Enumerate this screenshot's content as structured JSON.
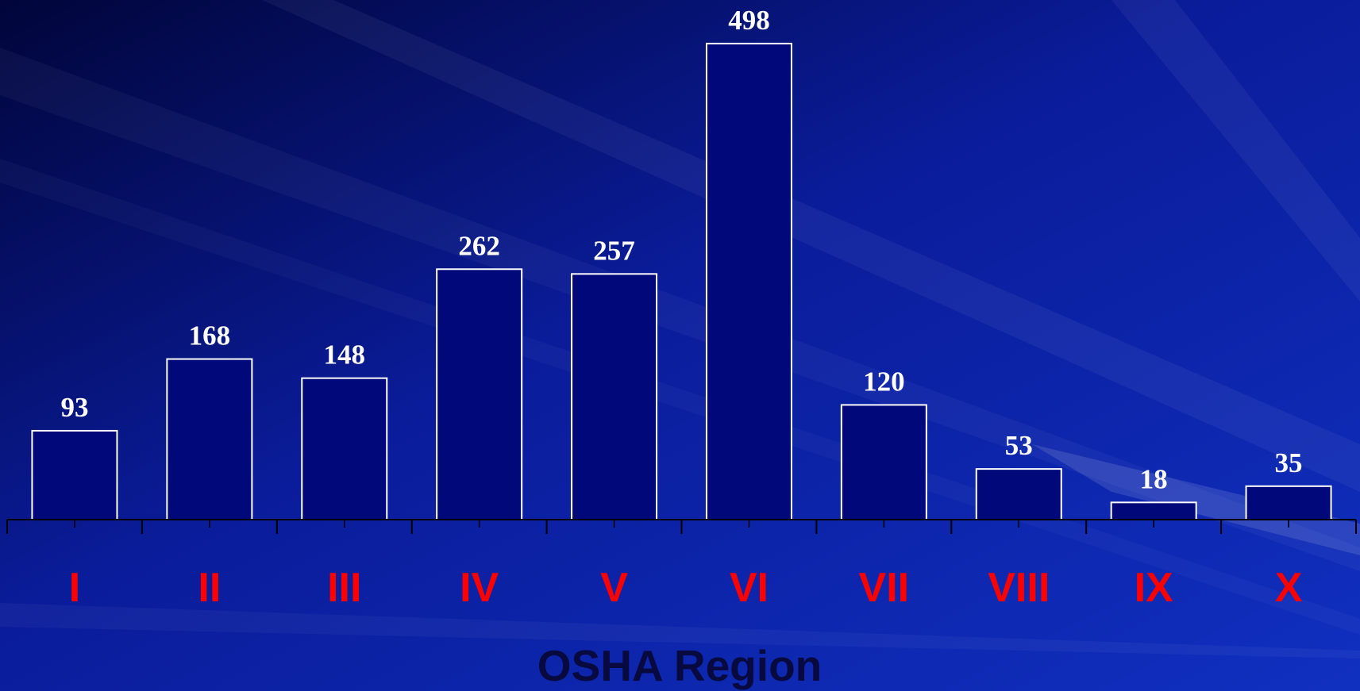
{
  "chart_data": {
    "type": "bar",
    "x_label": "OSHA Region",
    "categories": [
      "I",
      "II",
      "III",
      "IV",
      "V",
      "VI",
      "VII",
      "VIII",
      "IX",
      "X"
    ],
    "values": [
      93,
      168,
      148,
      262,
      257,
      498,
      120,
      53,
      18,
      35
    ],
    "color": "#00087a"
  }
}
